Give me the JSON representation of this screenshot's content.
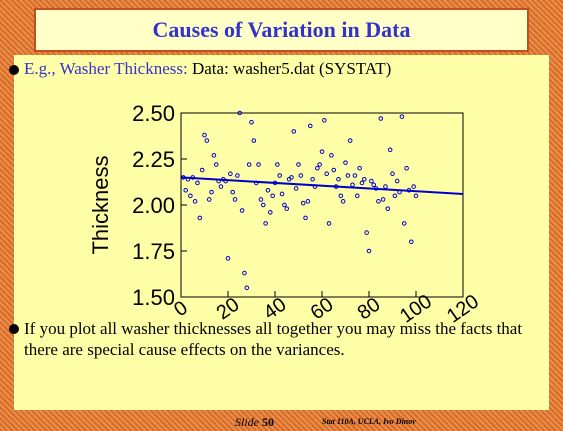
{
  "slide": {
    "title": "Causes of Variation in Data",
    "bullet1_lead": "E.g., Washer Thickness:",
    "bullet1_rest": "Data: washer5.dat (SYSTAT)",
    "bullet2": "If you plot all washer thicknesses all together you may miss the facts that there are special cause effects on the variances.",
    "footer_slide": "Slide",
    "footer_number": "50",
    "footer_credit": "Stat 110A, UCLA, Ivo Dinov"
  },
  "chart_data": {
    "type": "scatter",
    "y_label": "Thickness",
    "color": "#0000cc",
    "x": [
      1,
      2,
      3,
      4,
      5,
      6,
      7,
      8,
      9,
      10,
      11,
      12,
      13,
      14,
      15,
      16,
      17,
      18,
      19,
      20,
      21,
      22,
      23,
      24,
      25,
      26,
      27,
      28,
      29,
      30,
      31,
      32,
      33,
      34,
      35,
      36,
      37,
      38,
      39,
      40,
      41,
      42,
      43,
      44,
      45,
      46,
      47,
      48,
      49,
      50,
      51,
      52,
      53,
      54,
      55,
      56,
      57,
      58,
      59,
      60,
      61,
      62,
      63,
      64,
      65,
      66,
      67,
      68,
      69,
      70,
      71,
      72,
      73,
      74,
      75,
      76,
      77,
      78,
      79,
      80,
      81,
      82,
      83,
      84,
      85,
      86,
      87,
      88,
      89,
      90,
      91,
      92,
      93,
      94,
      95,
      96,
      97,
      98,
      99,
      100
    ],
    "values": [
      2.15,
      2.08,
      2.14,
      2.05,
      2.15,
      2.02,
      2.12,
      1.93,
      2.19,
      2.38,
      2.35,
      2.03,
      2.07,
      2.27,
      2.22,
      2.13,
      2.1,
      2.14,
      2.13,
      1.71,
      2.17,
      2.07,
      2.03,
      2.16,
      2.5,
      1.97,
      1.63,
      1.55,
      2.22,
      2.45,
      2.35,
      2.12,
      2.22,
      2.03,
      2.0,
      1.9,
      2.08,
      1.96,
      2.05,
      2.12,
      2.22,
      2.16,
      2.06,
      2.0,
      1.98,
      2.14,
      2.15,
      2.4,
      2.09,
      2.22,
      2.16,
      2.01,
      1.93,
      2.02,
      2.43,
      2.14,
      2.1,
      2.2,
      2.22,
      2.29,
      2.46,
      2.17,
      1.9,
      2.27,
      2.19,
      2.1,
      2.14,
      2.05,
      2.02,
      2.23,
      2.16,
      2.35,
      2.11,
      2.16,
      2.05,
      2.2,
      2.12,
      2.14,
      1.85,
      1.75,
      2.13,
      2.11,
      2.09,
      2.02,
      2.47,
      2.03,
      2.1,
      1.98,
      2.3,
      2.17,
      2.05,
      2.13,
      2.07,
      2.48,
      1.9,
      2.2,
      2.08,
      1.8,
      2.1,
      2.05
    ],
    "fit": {
      "x": [
        0,
        120
      ],
      "values": [
        2.15,
        2.06
      ]
    },
    "xlim": [
      0,
      120
    ],
    "ylim": [
      1.5,
      2.5
    ],
    "xticks": [
      0,
      20,
      40,
      60,
      80,
      100,
      120
    ],
    "yticks": [
      {
        "value": 1.5,
        "label": "1.50"
      },
      {
        "value": 1.75,
        "label": "1.75"
      },
      {
        "value": 2.0,
        "label": "2.00"
      },
      {
        "value": 2.25,
        "label": "2.25"
      },
      {
        "value": 2.5,
        "label": "2.50"
      }
    ]
  }
}
